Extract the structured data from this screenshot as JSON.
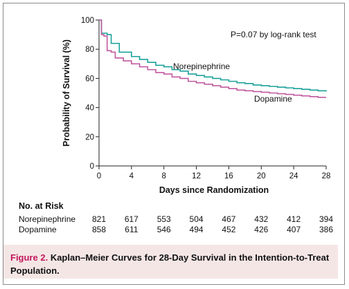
{
  "chart_data": {
    "type": "line",
    "annotation": "P=0.07 by log-rank test",
    "xlabel": "Days since Randomization",
    "ylabel": "Probability of Survival (%)",
    "xlim": [
      0,
      28
    ],
    "ylim": [
      0,
      100
    ],
    "xticks": [
      0,
      4,
      8,
      12,
      16,
      20,
      24,
      28
    ],
    "yticks": [
      0,
      20,
      40,
      60,
      80,
      100
    ],
    "grid": false,
    "series": [
      {
        "name": "Norepinephrine",
        "color": "#1aa19a",
        "x": [
          0,
          0.3,
          0.6,
          1,
          1.5,
          2,
          2.5,
          3,
          4,
          5,
          6,
          7,
          8,
          9,
          10,
          11,
          12,
          13,
          14,
          15,
          16,
          17,
          18,
          19,
          20,
          21,
          22,
          23,
          24,
          25,
          26,
          27,
          28
        ],
        "y": [
          100,
          91,
          91,
          90,
          84,
          84,
          78,
          78,
          75,
          73,
          71,
          69,
          68,
          66,
          65,
          63,
          62,
          61,
          60,
          59,
          58,
          57,
          56.5,
          55.5,
          55,
          54.5,
          54,
          53.5,
          53,
          52.5,
          52,
          51.5,
          51
        ]
      },
      {
        "name": "Dopamine",
        "color": "#c0599f",
        "x": [
          0,
          0.3,
          0.6,
          1,
          1.5,
          2,
          2.5,
          3,
          4,
          5,
          6,
          7,
          8,
          9,
          10,
          11,
          12,
          13,
          14,
          15,
          16,
          17,
          18,
          19,
          20,
          21,
          22,
          23,
          24,
          25,
          26,
          27,
          28
        ],
        "y": [
          100,
          90,
          89,
          79,
          78,
          74,
          74,
          72,
          70,
          68,
          66,
          64,
          63,
          61,
          60,
          58,
          57,
          56,
          55,
          54,
          53,
          52,
          51.5,
          51,
          50.5,
          50,
          49.5,
          49,
          48.5,
          48,
          47.5,
          47,
          47
        ]
      }
    ]
  },
  "risk_table": {
    "title": "No. at Risk",
    "rows": [
      {
        "label": "Norepinephrine",
        "values": [
          "821",
          "617",
          "553",
          "504",
          "467",
          "432",
          "412",
          "394"
        ]
      },
      {
        "label": "Dopamine",
        "values": [
          "858",
          "611",
          "546",
          "494",
          "452",
          "426",
          "407",
          "386"
        ]
      }
    ]
  },
  "caption": {
    "figure_label": "Figure 2.",
    "text": "Kaplan–Meier Curves for 28-Day Survival in the Intention-to-Treat Population."
  },
  "colors": {
    "caption_bg": "#f5e6e6",
    "figure_label": "#c2185b",
    "frame": "#8a8a8a"
  }
}
